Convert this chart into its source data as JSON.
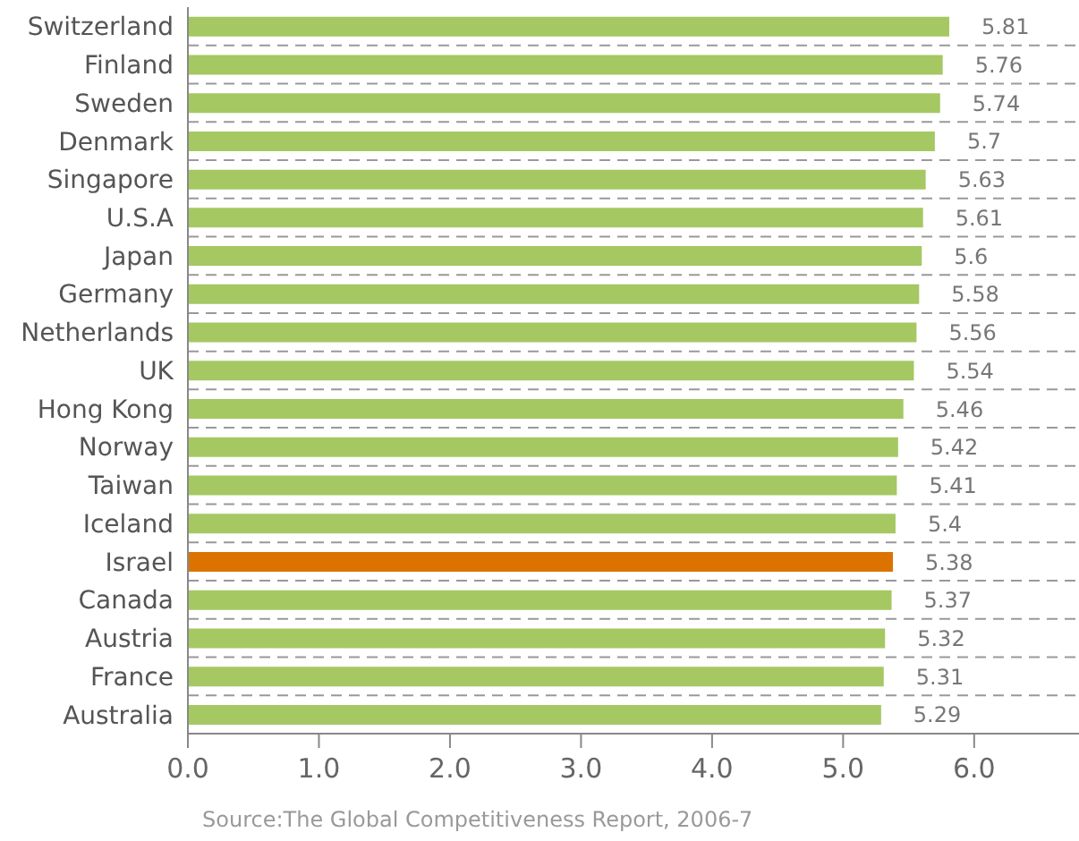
{
  "chart_data": {
    "type": "bar",
    "orientation": "horizontal",
    "categories": [
      "Switzerland",
      "Finland",
      "Sweden",
      "Denmark",
      "Singapore",
      "U.S.A",
      "Japan",
      "Germany",
      "Netherlands",
      "UK",
      "Hong Kong",
      "Norway",
      "Taiwan",
      "Iceland",
      "Israel",
      "Canada",
      "Austria",
      "France",
      "Australia"
    ],
    "values": [
      5.81,
      5.76,
      5.74,
      5.7,
      5.63,
      5.61,
      5.6,
      5.58,
      5.56,
      5.54,
      5.46,
      5.42,
      5.41,
      5.4,
      5.38,
      5.37,
      5.32,
      5.31,
      5.29
    ],
    "colors": [
      "#a5c863",
      "#a5c863",
      "#a5c863",
      "#a5c863",
      "#a5c863",
      "#a5c863",
      "#a5c863",
      "#a5c863",
      "#a5c863",
      "#a5c863",
      "#a5c863",
      "#a5c863",
      "#a5c863",
      "#a5c863",
      "#dc7300",
      "#a5c863",
      "#a5c863",
      "#a5c863",
      "#a5c863"
    ],
    "xlim": [
      0,
      6.8
    ],
    "xticks": [
      {
        "value": 0,
        "label": "0.0"
      },
      {
        "value": 1,
        "label": "1.0"
      },
      {
        "value": 2,
        "label": "2.0"
      },
      {
        "value": 3,
        "label": "3.0"
      },
      {
        "value": 4,
        "label": "4.0"
      },
      {
        "value": 5,
        "label": "5.0"
      },
      {
        "value": 6,
        "label": "6.0"
      }
    ],
    "grid": "y",
    "data_labels": true,
    "annotations": [
      "Source:The Global Competitiveness Report, 2006-7"
    ]
  }
}
